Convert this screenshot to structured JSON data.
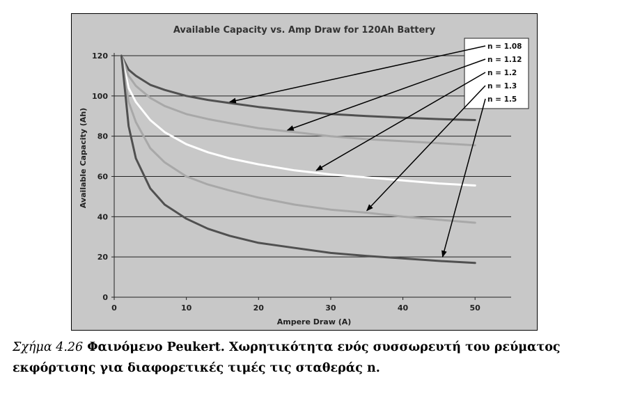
{
  "chart_data": {
    "type": "line",
    "title": "Available Capacity vs. Amp Draw for 120Ah Battery",
    "xlabel": "Ampere Draw (A)",
    "ylabel": "Available Capacity (Ah)",
    "xlim": [
      0,
      55
    ],
    "ylim": [
      0,
      120
    ],
    "xticks": [
      0,
      10,
      20,
      30,
      40,
      50
    ],
    "yticks": [
      0,
      20,
      40,
      60,
      80,
      100,
      120
    ],
    "grid": "horizontal",
    "legend_position": "top-right",
    "x": [
      1,
      2,
      3,
      5,
      7,
      10,
      13,
      16,
      20,
      25,
      30,
      35,
      40,
      45,
      50
    ],
    "series": [
      {
        "name": "n = 1.08",
        "color": "#505050",
        "values": [
          120,
          113,
          110,
          105.5,
          103,
          100,
          98,
          96.5,
          94.5,
          92.5,
          91,
          90,
          89.2,
          88.5,
          88
        ]
      },
      {
        "name": "n = 1.12",
        "color": "#a8a8a8",
        "values": [
          120,
          110,
          105,
          99,
          95,
          91,
          88.5,
          86.5,
          84,
          82,
          80,
          78.5,
          77.5,
          76.5,
          75.5
        ]
      },
      {
        "name": "n = 1.2",
        "color": "#ffffff",
        "values": [
          120,
          104,
          97,
          88,
          82,
          76,
          72,
          69,
          66,
          63,
          61,
          59.5,
          58,
          56.5,
          55.5
        ]
      },
      {
        "name": "n = 1.3",
        "color": "#a8a8a8",
        "values": [
          120,
          97,
          87,
          74,
          67,
          60,
          56,
          53,
          49.5,
          46,
          43.5,
          42,
          40,
          38.5,
          37
        ]
      },
      {
        "name": "n = 1.5",
        "color": "#505050",
        "values": [
          120,
          85,
          69,
          54,
          46,
          39,
          34,
          30.5,
          27,
          24.5,
          22,
          20.5,
          19.3,
          18,
          17
        ]
      }
    ],
    "arrow_targets": [
      {
        "x": 16,
        "y": 97
      },
      {
        "x": 24,
        "y": 83
      },
      {
        "x": 28,
        "y": 63
      },
      {
        "x": 35,
        "y": 43
      },
      {
        "x": 45.5,
        "y": 20
      }
    ],
    "arrow_color": "#000000"
  },
  "caption": {
    "label": "Σχήμα 4.26",
    "text": " Φαινόμενο Peukert. Χωρητικότητα ενός συσσωρευτή του ρεύματος εκφόρτισης για διαφορετικές τιμές τις σταθεράς n."
  }
}
